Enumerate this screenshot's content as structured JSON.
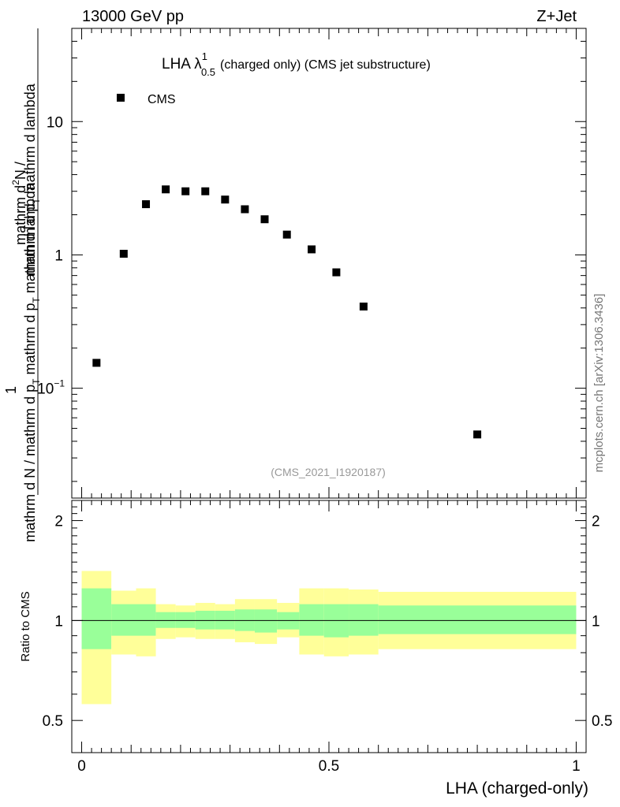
{
  "header": {
    "left": "13000 GeV pp",
    "right": "Z+Jet"
  },
  "side_label": "mcplots.cern.ch [arXiv:1306.3436]",
  "chart_data": [
    {
      "type": "scatter",
      "title": "LHA λ",
      "title_superscript": "1",
      "title_subscript": "0.5",
      "title_rest": "(charged only) (CMS jet substructure)",
      "analysis_tag": "(CMS_2021_I1920187)",
      "ylabel_upper": "mathrm d",
      "ylabel_upper_sup": "2",
      "ylabel_upper_n": "N",
      "ylabel_upper_rest": "mathrm d p",
      "ylabel_upper_sub": "T",
      "ylabel_upper_end": " mathrm d lambda",
      "ylabel_lower_one": "1",
      "ylabel_lower": "mathrm d N / mathrm d p",
      "ylabel_lower_sub": "T",
      "ylabel_lower_end": " mathrm d p",
      "ylabel_lower_sub2": "T",
      "ylabel_lower_tail": " mathrm d lambda",
      "yscale": "log",
      "ylim": [
        0.015,
        50
      ],
      "xlim": [
        -0.02,
        1.02
      ],
      "yticks": [
        {
          "base": "10",
          "exp": "−1",
          "value": 0.1
        },
        {
          "base": "1",
          "exp": "",
          "value": 1
        },
        {
          "base": "10",
          "exp": "",
          "value": 10
        }
      ],
      "legend": {
        "position": "top-left",
        "entries": [
          "CMS"
        ]
      },
      "series": [
        {
          "name": "CMS",
          "x": [
            0.03,
            0.085,
            0.13,
            0.17,
            0.21,
            0.25,
            0.29,
            0.33,
            0.37,
            0.415,
            0.465,
            0.515,
            0.57,
            0.8
          ],
          "y": [
            0.155,
            1.02,
            2.4,
            3.1,
            3.0,
            3.0,
            2.6,
            2.2,
            1.85,
            1.42,
            1.1,
            0.74,
            0.41,
            0.045
          ]
        }
      ]
    },
    {
      "type": "area",
      "ylabel": "Ratio to CMS",
      "xlabel": "LHA (charged-only)",
      "xlim": [
        -0.02,
        1.02
      ],
      "ylim": [
        0.4,
        2.3
      ],
      "xticks": [
        "0",
        "0.5",
        "1"
      ],
      "yticks": [
        "0.5",
        "1",
        "2"
      ],
      "reference_line": 1,
      "bins": [
        {
          "x0": 0.0,
          "x1": 0.06,
          "inner": [
            0.82,
            1.25
          ],
          "outer": [
            0.56,
            1.41
          ]
        },
        {
          "x0": 0.06,
          "x1": 0.11,
          "inner": [
            0.9,
            1.12
          ],
          "outer": [
            0.79,
            1.23
          ]
        },
        {
          "x0": 0.11,
          "x1": 0.15,
          "inner": [
            0.9,
            1.12
          ],
          "outer": [
            0.78,
            1.25
          ]
        },
        {
          "x0": 0.15,
          "x1": 0.19,
          "inner": [
            0.95,
            1.06
          ],
          "outer": [
            0.88,
            1.12
          ]
        },
        {
          "x0": 0.19,
          "x1": 0.23,
          "inner": [
            0.95,
            1.06
          ],
          "outer": [
            0.89,
            1.11
          ]
        },
        {
          "x0": 0.23,
          "x1": 0.27,
          "inner": [
            0.94,
            1.07
          ],
          "outer": [
            0.88,
            1.13
          ]
        },
        {
          "x0": 0.27,
          "x1": 0.31,
          "inner": [
            0.94,
            1.07
          ],
          "outer": [
            0.88,
            1.12
          ]
        },
        {
          "x0": 0.31,
          "x1": 0.35,
          "inner": [
            0.93,
            1.08
          ],
          "outer": [
            0.86,
            1.16
          ]
        },
        {
          "x0": 0.35,
          "x1": 0.395,
          "inner": [
            0.92,
            1.08
          ],
          "outer": [
            0.85,
            1.16
          ]
        },
        {
          "x0": 0.395,
          "x1": 0.44,
          "inner": [
            0.94,
            1.06
          ],
          "outer": [
            0.89,
            1.13
          ]
        },
        {
          "x0": 0.44,
          "x1": 0.49,
          "inner": [
            0.9,
            1.12
          ],
          "outer": [
            0.79,
            1.25
          ]
        },
        {
          "x0": 0.49,
          "x1": 0.54,
          "inner": [
            0.89,
            1.12
          ],
          "outer": [
            0.78,
            1.25
          ]
        },
        {
          "x0": 0.54,
          "x1": 0.6,
          "inner": [
            0.9,
            1.12
          ],
          "outer": [
            0.79,
            1.24
          ]
        },
        {
          "x0": 0.6,
          "x1": 1.0,
          "inner": [
            0.91,
            1.11
          ],
          "outer": [
            0.82,
            1.22
          ]
        }
      ],
      "colors": {
        "inner": "#99ff99",
        "outer": "#ffff99"
      }
    }
  ]
}
